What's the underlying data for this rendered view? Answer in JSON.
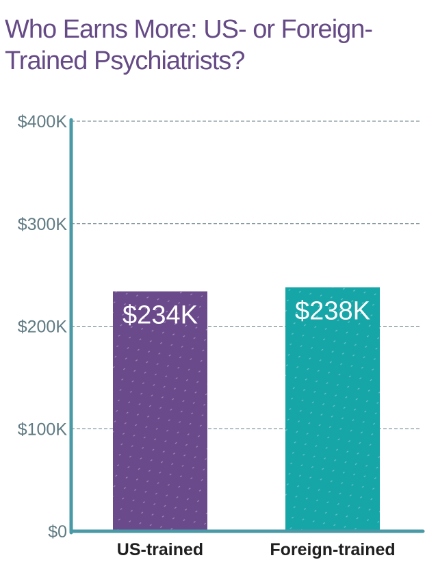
{
  "chart_data": {
    "type": "bar",
    "title": "Who Earns More: US- or Foreign-Trained Psychiatrists?",
    "categories": [
      "US-trained",
      "Foreign-trained"
    ],
    "values": [
      234,
      238
    ],
    "value_labels": [
      "$234K",
      "$238K"
    ],
    "colors": [
      "#6b4a8c",
      "#17a6a8"
    ],
    "yticks": [
      0,
      100,
      200,
      300,
      400
    ],
    "ytick_labels": [
      "$0",
      "$100K",
      "$200K",
      "$300K",
      "$400K"
    ],
    "ylim": [
      0,
      400
    ],
    "grid": true,
    "axis_color": "#4a99a6"
  }
}
